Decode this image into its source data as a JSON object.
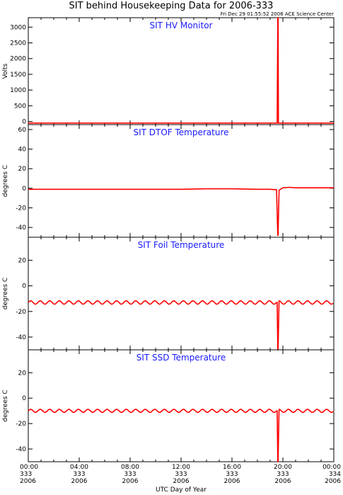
{
  "title": "SIT behind Housekeeping Data for 2006-333",
  "subtitle": "Fri Dec 29 01:55:52 2006 ACE Science Center",
  "x_axis": {
    "label": "UTC Day of Year",
    "ticks": [
      {
        "hours": 0,
        "lines": [
          "00:00",
          "333",
          "2006"
        ]
      },
      {
        "hours": 4,
        "lines": [
          "04:00",
          "333",
          "2006"
        ]
      },
      {
        "hours": 8,
        "lines": [
          "08:00",
          "333",
          "2006"
        ]
      },
      {
        "hours": 12,
        "lines": [
          "12:00",
          "333",
          "2006"
        ]
      },
      {
        "hours": 16,
        "lines": [
          "16:00",
          "333",
          "2006"
        ]
      },
      {
        "hours": 20,
        "lines": [
          "20:00",
          "333",
          "2006"
        ]
      },
      {
        "hours": 24,
        "lines": [
          "00:00",
          "334",
          "2006"
        ]
      }
    ]
  },
  "colors": {
    "data": "#ff0000",
    "panel_title": "#1a1aff",
    "axes": "#000000"
  },
  "chart_data": [
    {
      "type": "line",
      "title": "SIT HV Monitor",
      "ylabel": "Volts",
      "xlim": [
        0,
        24
      ],
      "ylim": [
        -100,
        3300
      ],
      "yticks": [
        0,
        500,
        1000,
        1500,
        2000,
        2500,
        3000
      ],
      "series": [
        {
          "x": [
            0,
            19.55,
            19.6,
            19.62,
            19.65,
            19.7,
            24
          ],
          "y": [
            -50,
            -50,
            3300,
            3300,
            -50,
            -50,
            -50
          ]
        }
      ]
    },
    {
      "type": "line",
      "title": "SIT DTOF Temperature",
      "ylabel": "degrees C",
      "xlim": [
        0,
        24
      ],
      "ylim": [
        -50,
        65
      ],
      "yticks": [
        -40,
        -20,
        0,
        20,
        40,
        60
      ],
      "series": [
        {
          "x": [
            0,
            4,
            8,
            12,
            14,
            16,
            18,
            19.0,
            19.5,
            19.6,
            19.62,
            19.7,
            20.0,
            20.5,
            21,
            22,
            24
          ],
          "y": [
            -1,
            -1,
            -1,
            -1,
            -0.5,
            -0.5,
            -1,
            -1,
            -1.5,
            -48,
            -48,
            -2,
            0.5,
            1,
            0.5,
            0.5,
            0.5
          ]
        }
      ]
    },
    {
      "type": "line",
      "title": "SIT Foil Temperature",
      "ylabel": "degrees C",
      "xlim": [
        0,
        24
      ],
      "ylim": [
        -50,
        38
      ],
      "yticks": [
        -40,
        -20,
        0,
        20
      ],
      "oscillation": {
        "center": -13,
        "amplitude": 1.3,
        "period_hours": 0.75
      },
      "series": [
        {
          "x": [
            0,
            19.55,
            19.6,
            19.62,
            19.7,
            24
          ],
          "y": [
            -13,
            -13,
            -50,
            -50,
            -13,
            -13
          ]
        }
      ]
    },
    {
      "type": "line",
      "title": "SIT SSD Temperature",
      "ylabel": "degrees C",
      "xlim": [
        0,
        24
      ],
      "ylim": [
        -50,
        38
      ],
      "yticks": [
        -40,
        -20,
        0,
        20
      ],
      "oscillation": {
        "center": -10,
        "amplitude": 1.2,
        "period_hours": 0.75
      },
      "series": [
        {
          "x": [
            0,
            19.55,
            19.6,
            19.62,
            19.7,
            24
          ],
          "y": [
            -10,
            -10,
            -50,
            -50,
            -10,
            -10
          ]
        }
      ]
    }
  ]
}
